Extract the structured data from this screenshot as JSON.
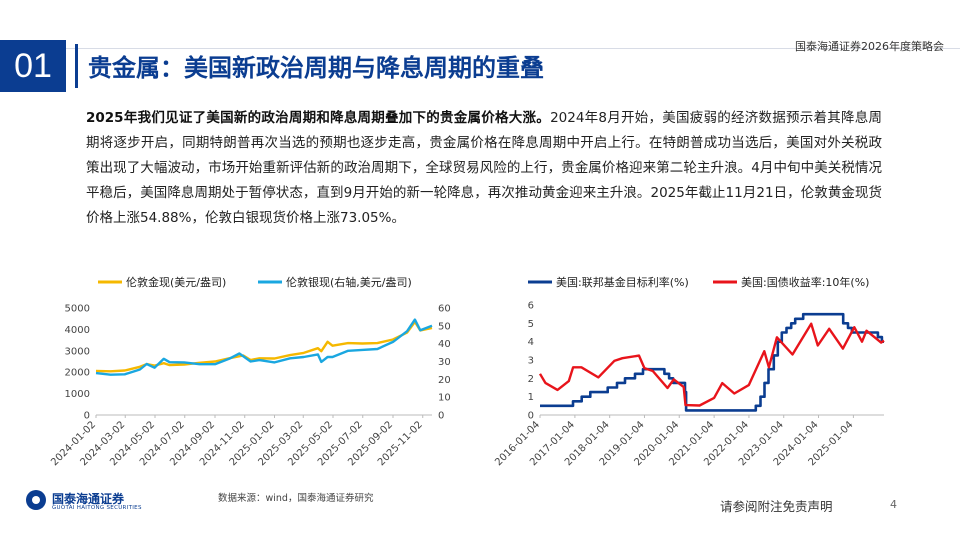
{
  "header": {
    "report_name": "国泰海通证券2026年度策略会",
    "section_number": "01",
    "title": "贵金属：美国新政治周期与降息周期的重叠"
  },
  "body": {
    "lead": "2025年我们见证了美国新的政治周期和降息周期叠加下的贵金属价格大涨。",
    "rest": "2024年8月开始，美国疲弱的经济数据预示着其降息周期将逐步开启，同期特朗普再次当选的预期也逐步走高，贵金属价格在降息周期中开启上行。在特朗普成功当选后，美国对外关税政策出现了大幅波动，市场开始重新评估新的政治周期下，全球贸易风险的上行，贵金属价格迎来第二轮主升浪。4月中旬中美关税情况平稳后，美国降息周期处于暂停状态，直到9月开始的新一轮降息，再次推动黄金迎来主升浪。2025年截止11月21日，伦敦黄金现货价格上涨54.88%，伦敦白银现货价格上涨73.05%。"
  },
  "chart_data": [
    {
      "type": "line",
      "series": [
        {
          "name": "伦敦金现(美元/盎司)",
          "axis": "left",
          "color": "#f5b800",
          "x": [
            "2024-01-02",
            "2024-02-01",
            "2024-03-01",
            "2024-04-01",
            "2024-04-15",
            "2024-05-01",
            "2024-05-20",
            "2024-06-01",
            "2024-07-01",
            "2024-08-01",
            "2024-09-02",
            "2024-10-01",
            "2024-10-30",
            "2024-11-14",
            "2024-12-02",
            "2025-01-02",
            "2025-02-03",
            "2025-03-03",
            "2025-04-01",
            "2025-04-08",
            "2025-04-21",
            "2025-05-01",
            "2025-06-02",
            "2025-07-01",
            "2025-08-01",
            "2025-09-02",
            "2025-10-01",
            "2025-10-17",
            "2025-10-28",
            "2025-11-21"
          ],
          "values": [
            2060,
            2040,
            2080,
            2250,
            2380,
            2310,
            2420,
            2330,
            2360,
            2440,
            2500,
            2650,
            2780,
            2570,
            2650,
            2640,
            2800,
            2900,
            3120,
            2980,
            3420,
            3240,
            3360,
            3340,
            3360,
            3530,
            3850,
            4350,
            3950,
            4070
          ]
        },
        {
          "name": "伦敦银现(右轴,美元/盎司)",
          "axis": "right",
          "color": "#1aa7e0",
          "x": [
            "2024-01-02",
            "2024-02-01",
            "2024-03-01",
            "2024-04-01",
            "2024-04-15",
            "2024-05-01",
            "2024-05-20",
            "2024-06-01",
            "2024-07-01",
            "2024-08-01",
            "2024-09-02",
            "2024-10-01",
            "2024-10-22",
            "2024-11-14",
            "2024-12-02",
            "2025-01-02",
            "2025-02-03",
            "2025-03-03",
            "2025-04-01",
            "2025-04-08",
            "2025-04-21",
            "2025-05-01",
            "2025-06-02",
            "2025-07-01",
            "2025-08-01",
            "2025-09-02",
            "2025-10-01",
            "2025-10-17",
            "2025-10-28",
            "2025-11-21"
          ],
          "values": [
            23.5,
            22.6,
            22.8,
            25.5,
            28.6,
            26.5,
            31.5,
            29.6,
            29.5,
            28.5,
            28.5,
            31.5,
            34.5,
            30.0,
            30.8,
            29.5,
            31.8,
            32.5,
            34.0,
            29.8,
            32.5,
            32.5,
            36.0,
            36.5,
            37.0,
            41.0,
            47.0,
            53.5,
            47.5,
            50.0
          ]
        }
      ],
      "xticks": [
        "2024-01-02",
        "2024-03-02",
        "2024-05-02",
        "2024-07-02",
        "2024-09-02",
        "2024-11-02",
        "2025-01-02",
        "2025-03-02",
        "2025-05-02",
        "2025-07-02",
        "2025-09-02",
        "2025-11-02"
      ],
      "yleft": {
        "range": [
          0,
          5000
        ],
        "ticks": [
          "0",
          "1000",
          "2000",
          "3000",
          "4000",
          "5000"
        ]
      },
      "yright": {
        "range": [
          0,
          60
        ],
        "ticks": [
          "0",
          "10",
          "20",
          "30",
          "40",
          "50",
          "60"
        ]
      },
      "legend": "top"
    },
    {
      "type": "line",
      "series": [
        {
          "name": "美国:联邦基金目标利率(%)",
          "color": "#0b3d91",
          "step": true,
          "x": [
            "2016-01-04",
            "2016-12-15",
            "2017-03-16",
            "2017-06-15",
            "2017-12-14",
            "2018-03-22",
            "2018-06-14",
            "2018-09-27",
            "2018-12-20",
            "2019-08-01",
            "2019-09-19",
            "2019-10-31",
            "2020-03-04",
            "2020-03-16",
            "2022-03-17",
            "2022-05-05",
            "2022-06-16",
            "2022-07-28",
            "2022-09-22",
            "2022-11-03",
            "2022-12-15",
            "2023-02-02",
            "2023-03-23",
            "2023-05-04",
            "2023-07-27",
            "2024-09-19",
            "2024-11-08",
            "2024-12-19",
            "2025-09-18",
            "2025-10-30",
            "2025-11-21"
          ],
          "values": [
            0.5,
            0.75,
            1.0,
            1.25,
            1.5,
            1.75,
            2.0,
            2.25,
            2.5,
            2.25,
            2.0,
            1.75,
            1.25,
            0.25,
            0.5,
            1.0,
            1.75,
            2.5,
            3.25,
            4.0,
            4.5,
            4.75,
            5.0,
            5.25,
            5.5,
            5.0,
            4.75,
            4.5,
            4.25,
            4.0,
            4.0
          ]
        },
        {
          "name": "美国:国债收益率:10年(%)",
          "color": "#e8141b",
          "x": [
            "2016-01-04",
            "2016-03-01",
            "2016-07-06",
            "2016-11-01",
            "2016-12-16",
            "2017-03-13",
            "2017-09-07",
            "2018-02-21",
            "2018-05-17",
            "2018-11-08",
            "2019-01-03",
            "2019-04-01",
            "2019-09-03",
            "2019-11-08",
            "2020-02-20",
            "2020-03-09",
            "2020-08-04",
            "2021-01-04",
            "2021-03-31",
            "2021-08-03",
            "2022-01-03",
            "2022-06-14",
            "2022-08-01",
            "2022-10-24",
            "2023-04-06",
            "2023-10-19",
            "2023-12-27",
            "2024-04-25",
            "2024-09-16",
            "2025-01-13",
            "2025-04-04",
            "2025-05-21",
            "2025-10-22",
            "2025-11-21"
          ],
          "values": [
            2.25,
            1.75,
            1.37,
            1.85,
            2.6,
            2.6,
            2.05,
            2.95,
            3.1,
            3.24,
            2.56,
            2.4,
            1.47,
            1.94,
            1.52,
            0.54,
            0.52,
            0.93,
            1.74,
            1.17,
            1.63,
            3.48,
            2.6,
            4.24,
            3.3,
            4.98,
            3.79,
            4.7,
            3.62,
            4.79,
            4.0,
            4.6,
            3.95,
            4.06
          ]
        }
      ],
      "xticks": [
        "2016-01-04",
        "2017-01-04",
        "2018-01-04",
        "2019-01-04",
        "2020-01-04",
        "2021-01-04",
        "2022-01-04",
        "2023-01-04",
        "2024-01-04",
        "2025-01-04"
      ],
      "y": {
        "range": [
          0,
          6
        ],
        "ticks": [
          "0",
          "1",
          "2",
          "3",
          "4",
          "5",
          "6"
        ]
      },
      "legend": "top"
    }
  ],
  "footer": {
    "logo_cn": "国泰海通证券",
    "logo_en": "GUOTAI HAITONG SECURITIES",
    "source": "数据来源：wind，国泰海通证券研究",
    "disclaimer": "请参阅附注免责声明",
    "page": "4"
  },
  "colors": {
    "brand": "#0b3d91",
    "gold": "#f5b800",
    "silver": "#1aa7e0",
    "rate": "#0b3d91",
    "yield": "#e8141b"
  }
}
